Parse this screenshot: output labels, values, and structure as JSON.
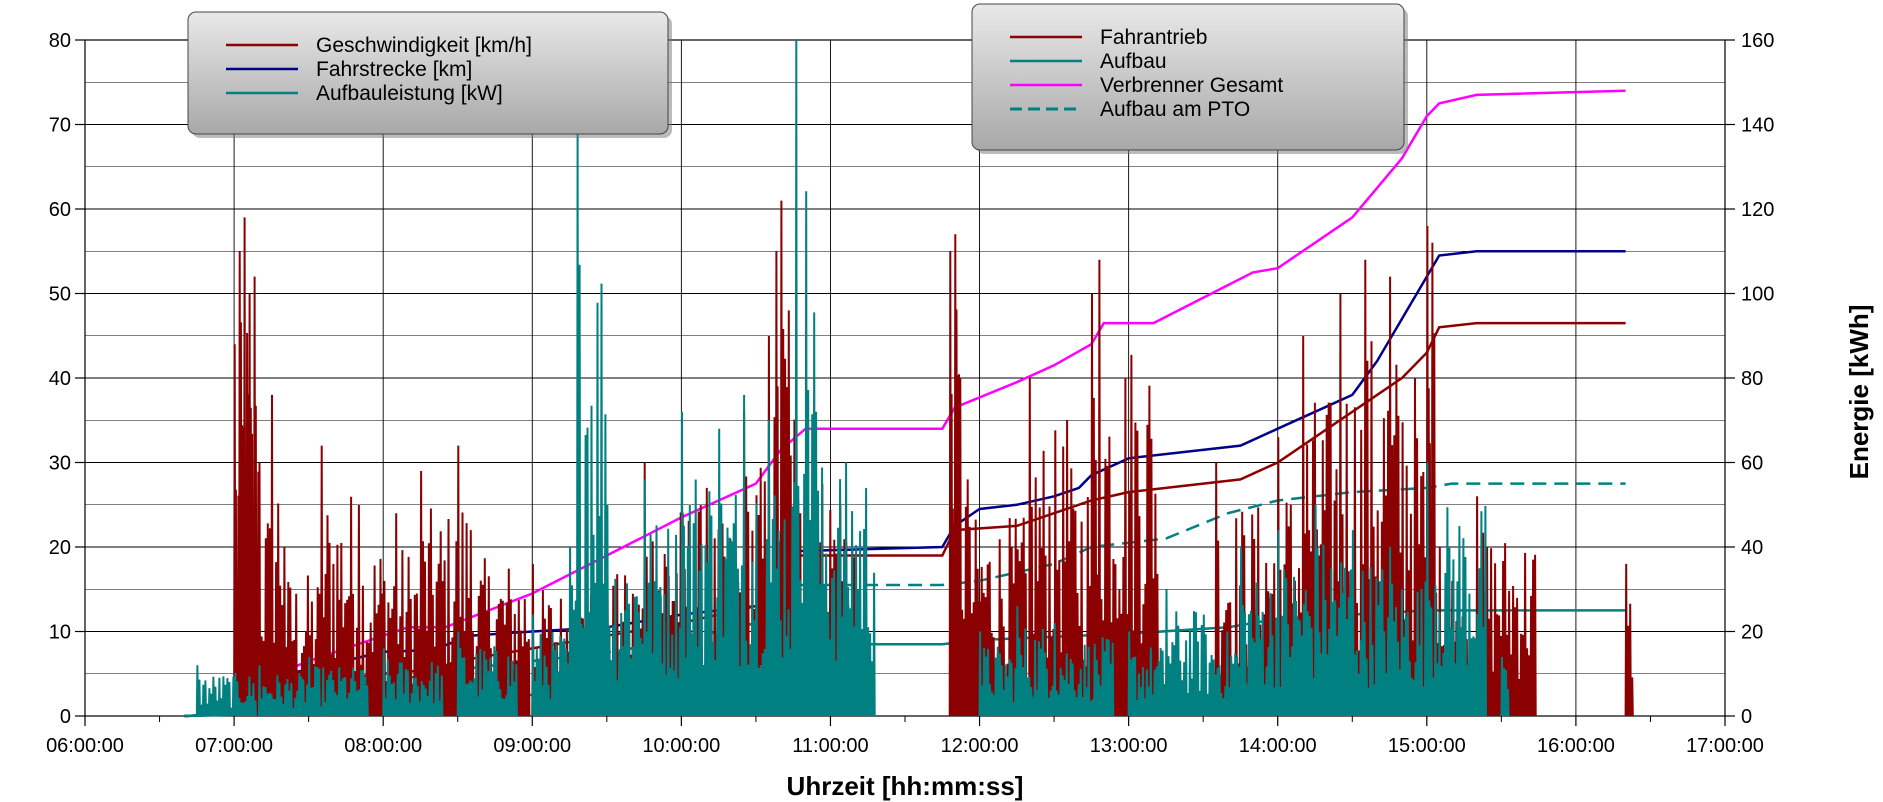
{
  "chart_data": {
    "type": "line",
    "xlabel": "Uhrzeit  [hh:mm:ss]",
    "ylabel_left": "",
    "ylabel_right": "Energie  [kWh]",
    "x_ticks": [
      "06:00:00",
      "07:00:00",
      "08:00:00",
      "09:00:00",
      "10:00:00",
      "11:00:00",
      "12:00:00",
      "13:00:00",
      "14:00:00",
      "15:00:00",
      "16:00:00",
      "17:00:00"
    ],
    "y_left_ticks": [
      "0",
      "10",
      "20",
      "30",
      "40",
      "50",
      "60",
      "70",
      "80"
    ],
    "y_right_ticks": [
      "0",
      "20",
      "40",
      "60",
      "80",
      "100",
      "120",
      "140",
      "160"
    ],
    "xlim": [
      "06:00:00",
      "17:00:00"
    ],
    "ylim_left": [
      0,
      80
    ],
    "ylim_right": [
      0,
      160
    ],
    "grid": true,
    "legend_left": {
      "placement": "top-left",
      "entries": [
        {
          "name": "Geschwindigkeit  [km/h]",
          "color": "#8B0000"
        },
        {
          "name": "Fahrstrecke  [km]",
          "color": "#00008B"
        },
        {
          "name": "Aufbauleistung  [kW]",
          "color": "#008080"
        }
      ]
    },
    "legend_right": {
      "placement": "top-center",
      "entries": [
        {
          "name": "Fahrantrieb",
          "color": "#8B0000",
          "dash": false
        },
        {
          "name": "Aufbau",
          "color": "#008080",
          "dash": false
        },
        {
          "name": "Verbrenner Gesamt",
          "color": "#FF00FF",
          "dash": false
        },
        {
          "name": "Aufbau am PTO",
          "color": "#008080",
          "dash": true
        }
      ]
    },
    "series": [
      {
        "name": "Verbrenner Gesamt",
        "axis": "right",
        "color": "#FF00FF",
        "x": [
          "06:40:00",
          "07:00:00",
          "07:05:00",
          "07:30:00",
          "08:00:00",
          "08:05:00",
          "08:10:00",
          "08:25:00",
          "09:00:00",
          "09:30:00",
          "10:00:00",
          "10:30:00",
          "10:40:00",
          "10:50:00",
          "11:45:00",
          "11:50:00",
          "12:15:00",
          "12:30:00",
          "12:45:00",
          "12:50:00",
          "13:10:00",
          "13:30:00",
          "13:50:00",
          "14:00:00",
          "14:30:00",
          "14:50:00",
          "15:00:00",
          "15:05:00",
          "15:20:00",
          "16:20:00"
        ],
        "values": [
          0,
          0.5,
          7,
          13,
          19,
          20,
          21,
          21,
          29,
          38,
          47,
          55,
          63,
          68,
          68,
          73,
          79,
          83,
          88,
          93,
          93,
          99,
          105,
          106,
          118,
          132,
          142,
          145,
          147,
          148
        ]
      },
      {
        "name": "Fahrstrecke  [km]",
        "axis": "left",
        "color": "#00008B",
        "x": [
          "06:40:00",
          "07:00:00",
          "07:05:00",
          "07:30:00",
          "08:00:00",
          "08:20:00",
          "08:35:00",
          "09:00:00",
          "09:30:00",
          "10:00:00",
          "10:30:00",
          "10:35:00",
          "10:40:00",
          "10:45:00",
          "11:45:00",
          "11:50:00",
          "12:00:00",
          "12:15:00",
          "12:30:00",
          "12:40:00",
          "12:45:00",
          "13:00:00",
          "13:45:00",
          "14:00:00",
          "14:15:00",
          "14:30:00",
          "14:40:00",
          "14:50:00",
          "15:00:00",
          "15:05:00",
          "15:20:00",
          "16:20:00"
        ],
        "values": [
          0,
          0.2,
          4,
          5.5,
          7.6,
          7.8,
          9.5,
          10,
          10.5,
          12,
          13,
          14,
          17,
          19.5,
          20,
          22.5,
          24.5,
          25,
          26,
          27,
          28.5,
          30.5,
          32,
          34,
          36,
          38,
          42,
          47,
          52,
          54.5,
          55,
          55
        ]
      },
      {
        "name": "Fahrantrieb",
        "axis": "right",
        "color": "#8B0000",
        "x": [
          "06:40:00",
          "07:00:00",
          "07:10:00",
          "07:30:00",
          "08:00:00",
          "08:20:00",
          "08:30:00",
          "09:00:00",
          "09:30:00",
          "10:00:00",
          "10:30:00",
          "10:40:00",
          "10:45:00",
          "11:45:00",
          "11:50:00",
          "12:15:00",
          "12:30:00",
          "12:45:00",
          "13:00:00",
          "13:45:00",
          "14:00:00",
          "14:30:00",
          "14:50:00",
          "15:00:00",
          "15:05:00",
          "15:20:00",
          "16:20:00"
        ],
        "values": [
          0,
          0.5,
          6,
          8,
          10,
          11,
          13,
          16,
          19,
          22,
          26,
          30,
          38,
          38,
          44,
          45,
          48,
          51,
          53,
          56,
          60,
          72,
          80,
          86,
          92,
          93,
          93
        ]
      },
      {
        "name": "Aufbau am PTO",
        "axis": "right",
        "color": "#008080",
        "dash": true,
        "x": [
          "06:40:00",
          "07:00:00",
          "07:30:00",
          "08:10:00",
          "08:30:00",
          "09:00:00",
          "09:30:00",
          "10:00:00",
          "10:30:00",
          "10:45:00",
          "11:45:00",
          "12:00:00",
          "12:30:00",
          "12:45:00",
          "13:15:00",
          "13:40:00",
          "14:00:00",
          "14:30:00",
          "15:00:00",
          "15:10:00",
          "16:20:00"
        ],
        "values": [
          0,
          0.5,
          4,
          9,
          11,
          13,
          15,
          18,
          22,
          31,
          31,
          32,
          36,
          40,
          42,
          48,
          51,
          53,
          54,
          55,
          55
        ]
      },
      {
        "name": "Aufbau",
        "axis": "right",
        "color": "#008080",
        "x": [
          "06:40:00",
          "07:00:00",
          "07:30:00",
          "08:00:00",
          "08:10:00",
          "08:30:00",
          "09:00:00",
          "09:30:00",
          "10:00:00",
          "10:30:00",
          "10:40:00",
          "11:45:00",
          "12:00:00",
          "13:00:00",
          "13:40:00",
          "14:00:00",
          "15:00:00",
          "16:20:00"
        ],
        "values": [
          0,
          0.3,
          1,
          1.5,
          3,
          4,
          5,
          7,
          9,
          11,
          17,
          17,
          18,
          19.5,
          21,
          23,
          25,
          25
        ]
      },
      {
        "name": "Geschwindigkeit  [km/h]",
        "axis": "left",
        "color": "#8B0000",
        "shape": "spiky",
        "x": [
          "07:00:00",
          "07:02:00",
          "07:04:00",
          "07:06:00",
          "07:08:00",
          "07:10:00",
          "07:15:00",
          "07:20:00",
          "07:35:00",
          "07:50:00",
          "08:05:00",
          "08:15:00",
          "08:30:00",
          "08:35:00",
          "09:00:00",
          "09:30:00",
          "09:45:00",
          "10:10:00",
          "10:25:00",
          "10:35:00",
          "10:38:00",
          "10:40:00",
          "10:43:00",
          "10:46:00",
          "11:48:00",
          "11:50:00",
          "11:52:00",
          "11:55:00",
          "12:20:00",
          "12:35:00",
          "12:45:00",
          "12:48:00",
          "13:35:00",
          "14:00:00",
          "14:10:00",
          "14:25:00",
          "14:35:00",
          "14:45:00",
          "14:55:00",
          "15:00:00",
          "15:02:00",
          "15:05:00",
          "15:10:00",
          "15:20:00",
          "16:20:00"
        ],
        "values": [
          44,
          55,
          59,
          50,
          52,
          30,
          38,
          20,
          32,
          25,
          24,
          29,
          32,
          22,
          18,
          20,
          30,
          27,
          36,
          45,
          55,
          61,
          48,
          35,
          55,
          57,
          40,
          28,
          40,
          35,
          50,
          54,
          30,
          33,
          45,
          50,
          54,
          52,
          40,
          58,
          56,
          20,
          16,
          26,
          18
        ]
      },
      {
        "name": "Aufbauleistung  [kW]",
        "axis": "left",
        "color": "#008080",
        "shape": "spiky",
        "x": [
          "06:45:00",
          "07:10:00",
          "07:30:00",
          "08:00:00",
          "08:30:00",
          "09:00:00",
          "09:15:00",
          "09:18:00",
          "09:30:00",
          "09:45:00",
          "10:00:00",
          "10:15:00",
          "10:25:00",
          "10:35:00",
          "10:46:00",
          "10:54:00",
          "12:00:00",
          "12:15:00",
          "12:30:00",
          "13:00:00",
          "13:15:00",
          "13:30:00",
          "13:45:00",
          "14:00:00",
          "14:15:00",
          "14:30:00",
          "14:45:00",
          "15:00:00",
          "15:30:00"
        ],
        "values": [
          6,
          6,
          7,
          8,
          10,
          12,
          20,
          69,
          25,
          28,
          36,
          34,
          38,
          35,
          80,
          36,
          10,
          13,
          11,
          10,
          15,
          12,
          20,
          22,
          25,
          22,
          20,
          30,
          7
        ]
      }
    ]
  }
}
